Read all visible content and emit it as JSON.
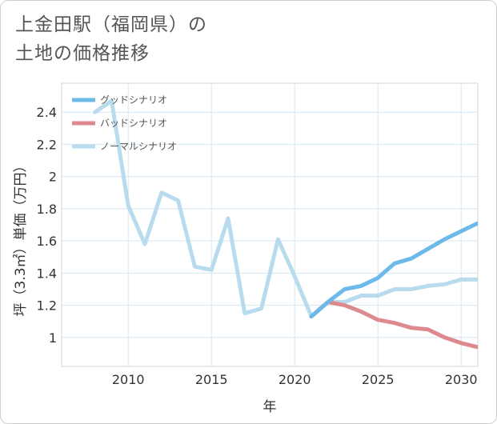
{
  "title_lines": [
    "上金田駅（福岡県）の",
    "土地の価格推移"
  ],
  "chart_data": {
    "type": "line",
    "title": "上金田駅（福岡県）の土地の価格推移",
    "xlabel": "年",
    "ylabel": "坪（3.3㎡）単価（万円）",
    "xlim": [
      2006,
      2031
    ],
    "ylim": [
      0.82,
      2.58
    ],
    "xticks": [
      2010,
      2015,
      2020,
      2025,
      2030
    ],
    "yticks": [
      1,
      1.2,
      1.4,
      1.6,
      1.8,
      2,
      2.2,
      2.4
    ],
    "legend_position": "top-left",
    "series": [
      {
        "name": "グッドシナリオ",
        "color": "#6cb9ea",
        "x": [
          2021,
          2022,
          2023,
          2024,
          2025,
          2026,
          2027,
          2028,
          2029,
          2030,
          2031
        ],
        "values": [
          1.13,
          1.22,
          1.3,
          1.32,
          1.37,
          1.46,
          1.49,
          1.55,
          1.61,
          1.66,
          1.71
        ]
      },
      {
        "name": "バッドシナリオ",
        "color": "#dd8a8f",
        "x": [
          2021,
          2022,
          2023,
          2024,
          2025,
          2026,
          2027,
          2028,
          2029,
          2030,
          2031
        ],
        "values": [
          1.13,
          1.22,
          1.2,
          1.16,
          1.11,
          1.09,
          1.06,
          1.05,
          1.0,
          0.965,
          0.94
        ]
      },
      {
        "name": "ノーマルシナリオ",
        "color": "#b8dced",
        "x": [
          2008,
          2009,
          2010,
          2011,
          2012,
          2013,
          2014,
          2015,
          2016,
          2017,
          2018,
          2019,
          2020,
          2021,
          2022,
          2023,
          2024,
          2025,
          2026,
          2027,
          2028,
          2029,
          2030,
          2031
        ],
        "values": [
          2.4,
          2.47,
          1.82,
          1.58,
          1.9,
          1.85,
          1.44,
          1.42,
          1.74,
          1.15,
          1.18,
          1.61,
          1.38,
          1.13,
          1.22,
          1.22,
          1.26,
          1.26,
          1.3,
          1.3,
          1.32,
          1.33,
          1.36,
          1.36
        ]
      }
    ]
  }
}
